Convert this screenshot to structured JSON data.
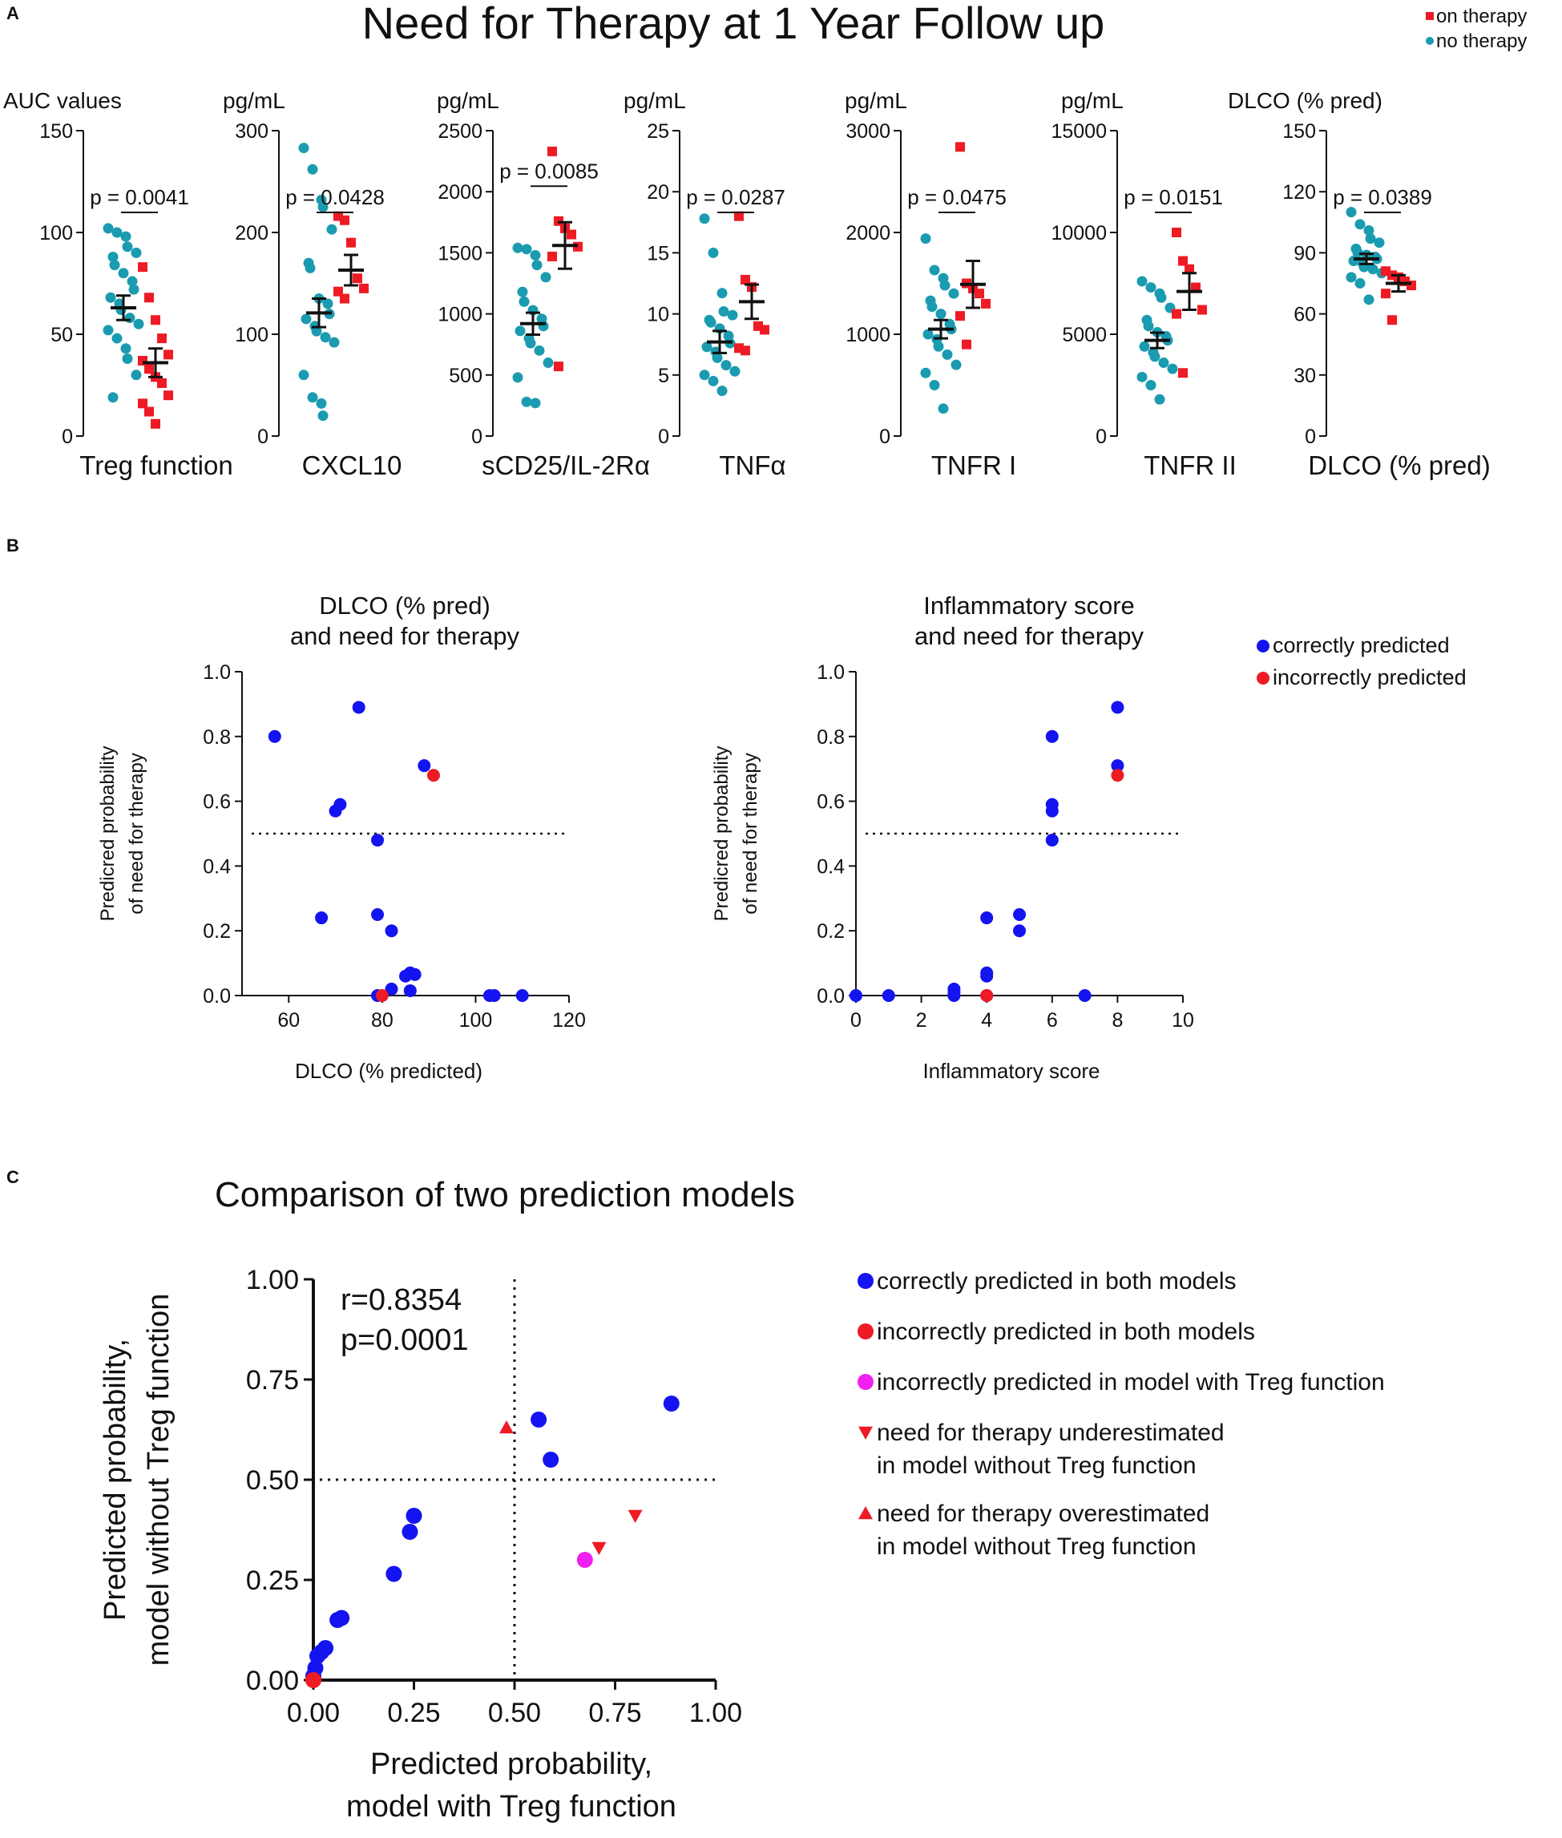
{
  "colors": {
    "teal": "#1a9bb0",
    "red": "#ee1b24",
    "blue": "#1414f0",
    "red_point": "#ee1b24",
    "magenta": "#f020f0",
    "axis": "#111111"
  },
  "panel_a": {
    "label": "A",
    "title": "Need for Therapy at 1 Year Follow up",
    "legend": [
      {
        "label": "on therapy",
        "color": "#ee1b24",
        "shape": "square"
      },
      {
        "label": "no therapy",
        "color": "#1a9bb0",
        "shape": "circle"
      }
    ]
  },
  "panel_b": {
    "label": "B"
  },
  "panel_c": {
    "label": "C",
    "title": "Comparison of two prediction models"
  },
  "chart_data": [
    {
      "type": "scatter",
      "subtype": "dot-plot-mean-sem",
      "unit_label": "AUC values",
      "xlabel": "Treg function",
      "ylim": [
        0,
        150
      ],
      "yticks": [
        0,
        50,
        100,
        150
      ],
      "p_value": "p = 0.0041",
      "groups": [
        {
          "name": "no therapy",
          "color": "#1a9bb0",
          "shape": "circle",
          "mean": 63,
          "sem": 6,
          "values": [
            102,
            100,
            98,
            93,
            90,
            88,
            84,
            80,
            76,
            72,
            68,
            65,
            62,
            58,
            55,
            52,
            48,
            43,
            38,
            30,
            19
          ]
        },
        {
          "name": "on therapy",
          "color": "#ee1b24",
          "shape": "square",
          "mean": 36,
          "sem": 7,
          "values": [
            83,
            68,
            57,
            48,
            40,
            37,
            33,
            29,
            26,
            20,
            16,
            12,
            6
          ]
        }
      ]
    },
    {
      "type": "scatter",
      "subtype": "dot-plot-mean-sem",
      "unit_label": "pg/mL",
      "xlabel": "CXCL10",
      "ylim": [
        0,
        300
      ],
      "yticks": [
        0,
        100,
        200,
        300
      ],
      "p_value": "p = 0.0428",
      "groups": [
        {
          "name": "no therapy",
          "color": "#1a9bb0",
          "shape": "circle",
          "mean": 121,
          "sem": 14,
          "values": [
            283,
            262,
            232,
            225,
            203,
            170,
            165,
            135,
            130,
            120,
            115,
            108,
            103,
            97,
            92,
            60,
            38,
            32,
            20
          ]
        },
        {
          "name": "on therapy",
          "color": "#ee1b24",
          "shape": "square",
          "mean": 163,
          "sem": 15,
          "values": [
            216,
            212,
            190,
            155,
            145,
            142,
            135
          ]
        }
      ]
    },
    {
      "type": "scatter",
      "subtype": "dot-plot-mean-sem",
      "unit_label": "pg/mL",
      "xlabel": "sCD25/IL-2Rα",
      "ylim": [
        0,
        2500
      ],
      "yticks": [
        0,
        500,
        1000,
        1500,
        2000,
        2500
      ],
      "p_value": "p = 0.0085",
      "groups": [
        {
          "name": "no therapy",
          "color": "#1a9bb0",
          "shape": "circle",
          "mean": 920,
          "sem": 90,
          "values": [
            1540,
            1530,
            1480,
            1400,
            1300,
            1180,
            1100,
            1030,
            960,
            900,
            860,
            800,
            760,
            700,
            600,
            480,
            280,
            270
          ]
        },
        {
          "name": "on therapy",
          "color": "#ee1b24",
          "shape": "square",
          "mean": 1560,
          "sem": 190,
          "values": [
            2330,
            1760,
            1700,
            1650,
            1550,
            1470,
            570
          ]
        }
      ]
    },
    {
      "type": "scatter",
      "subtype": "dot-plot-mean-sem",
      "unit_label": "pg/mL",
      "xlabel": "TNFα",
      "ylim": [
        0,
        25
      ],
      "yticks": [
        0,
        5,
        10,
        15,
        20,
        25
      ],
      "p_value": "p = 0.0287",
      "groups": [
        {
          "name": "no therapy",
          "color": "#1a9bb0",
          "shape": "circle",
          "mean": 7.7,
          "sem": 0.9,
          "values": [
            17.8,
            15.0,
            11.7,
            10.2,
            9.9,
            9.5,
            9.3,
            8.8,
            8.2,
            7.6,
            7.3,
            6.9,
            6.4,
            5.8,
            5.3,
            5.0,
            4.5,
            3.7
          ]
        },
        {
          "name": "on therapy",
          "color": "#ee1b24",
          "shape": "square",
          "mean": 11.0,
          "sem": 1.4,
          "values": [
            18.0,
            12.8,
            12.2,
            9.0,
            8.7,
            7.2,
            7.0
          ]
        }
      ]
    },
    {
      "type": "scatter",
      "subtype": "dot-plot-mean-sem",
      "unit_label": "pg/mL",
      "xlabel": "TNFR I",
      "ylim": [
        0,
        3000
      ],
      "yticks": [
        0,
        1000,
        2000,
        3000
      ],
      "p_value": "p = 0.0475",
      "groups": [
        {
          "name": "no therapy",
          "color": "#1a9bb0",
          "shape": "circle",
          "mean": 1050,
          "sem": 90,
          "values": [
            1940,
            1630,
            1550,
            1480,
            1400,
            1330,
            1270,
            1200,
            1100,
            1050,
            1000,
            950,
            880,
            800,
            700,
            620,
            500,
            270
          ]
        },
        {
          "name": "on therapy",
          "color": "#ee1b24",
          "shape": "square",
          "mean": 1490,
          "sem": 230,
          "values": [
            2840,
            1500,
            1450,
            1400,
            1300,
            1180,
            900
          ]
        }
      ]
    },
    {
      "type": "scatter",
      "subtype": "dot-plot-mean-sem",
      "unit_label": "pg/mL",
      "xlabel": "TNFR II",
      "ylim": [
        0,
        15000
      ],
      "yticks": [
        0,
        5000,
        10000,
        15000
      ],
      "p_value": "p = 0.0151",
      "groups": [
        {
          "name": "no therapy",
          "color": "#1a9bb0",
          "shape": "circle",
          "mean": 4700,
          "sem": 380,
          "values": [
            7600,
            7300,
            7000,
            6800,
            6300,
            5700,
            5400,
            5100,
            4900,
            4700,
            4400,
            4100,
            3900,
            3600,
            3300,
            2900,
            2500,
            1800
          ]
        },
        {
          "name": "on therapy",
          "color": "#ee1b24",
          "shape": "square",
          "mean": 7100,
          "sem": 900,
          "values": [
            10000,
            8600,
            8200,
            7300,
            6200,
            6000,
            3100
          ]
        }
      ]
    },
    {
      "type": "scatter",
      "subtype": "dot-plot-mean-sem",
      "unit_label": "DLCO (% pred)",
      "xlabel": "DLCO (% pred)",
      "ylim": [
        0,
        150
      ],
      "yticks": [
        0,
        30,
        60,
        90,
        120,
        150
      ],
      "p_value": "p = 0.0389",
      "groups": [
        {
          "name": "no therapy",
          "color": "#1a9bb0",
          "shape": "circle",
          "mean": 87,
          "sem": 2.5,
          "values": [
            110,
            104,
            101,
            97,
            95,
            92,
            90,
            89,
            88,
            87,
            86,
            85,
            83,
            82,
            80,
            78,
            75,
            67
          ]
        },
        {
          "name": "on therapy",
          "color": "#ee1b24",
          "shape": "square",
          "mean": 75,
          "sem": 4,
          "values": [
            81,
            79,
            78,
            76,
            74,
            70,
            57
          ]
        }
      ]
    },
    {
      "type": "scatter",
      "title": "DLCO (% pred)\nand need for therapy",
      "title_lines": [
        "DLCO (% pred)",
        "and need for therapy"
      ],
      "xlabel": "DLCO (% predicted)",
      "ylabel_lines": [
        "Predicred probability",
        "of need for therapy"
      ],
      "xlim": [
        50,
        120
      ],
      "xticks": [
        60,
        80,
        100,
        120
      ],
      "ylim": [
        0,
        1
      ],
      "yticks": [
        0.0,
        0.2,
        0.4,
        0.6,
        0.8,
        1.0
      ],
      "threshold": 0.5,
      "series": [
        {
          "name": "correctly predicted",
          "color": "#1414f0",
          "points": [
            [
              57,
              0.8
            ],
            [
              75,
              0.89
            ],
            [
              71,
              0.59
            ],
            [
              70,
              0.57
            ],
            [
              89,
              0.71
            ],
            [
              79,
              0.48
            ],
            [
              67,
              0.24
            ],
            [
              79,
              0.25
            ],
            [
              82,
              0.2
            ],
            [
              86,
              0.07
            ],
            [
              85,
              0.06
            ],
            [
              87,
              0.065
            ],
            [
              86,
              0.015
            ],
            [
              82,
              0.02
            ],
            [
              79,
              0.0
            ],
            [
              103,
              0.0
            ],
            [
              104,
              0.0
            ],
            [
              110,
              0.0
            ]
          ]
        },
        {
          "name": "incorrectly predicted",
          "color": "#ee1b24",
          "points": [
            [
              91,
              0.68
            ],
            [
              80,
              0.0
            ]
          ]
        }
      ]
    },
    {
      "type": "scatter",
      "title": "Inflammatory score\nand need for therapy",
      "title_lines": [
        "Inflammatory score",
        "and need for therapy"
      ],
      "xlabel": "Inflammatory score",
      "ylabel_lines": [
        "Predicred probability",
        "of need for therapy"
      ],
      "xlim": [
        0,
        10
      ],
      "xticks": [
        0,
        2,
        4,
        6,
        8,
        10
      ],
      "ylim": [
        0,
        1
      ],
      "yticks": [
        0.0,
        0.2,
        0.4,
        0.6,
        0.8,
        1.0
      ],
      "threshold": 0.5,
      "legend": [
        {
          "label": "correctly predicted",
          "color": "#1414f0"
        },
        {
          "label": "incorrectly predicted",
          "color": "#ee1b24"
        }
      ],
      "series": [
        {
          "name": "correctly predicted",
          "color": "#1414f0",
          "points": [
            [
              8,
              0.89
            ],
            [
              6,
              0.8
            ],
            [
              8,
              0.71
            ],
            [
              6,
              0.59
            ],
            [
              6,
              0.57
            ],
            [
              6,
              0.48
            ],
            [
              4,
              0.24
            ],
            [
              5,
              0.25
            ],
            [
              5,
              0.2
            ],
            [
              4,
              0.07
            ],
            [
              4,
              0.06
            ],
            [
              3,
              0.02
            ],
            [
              3,
              0.01
            ],
            [
              0,
              0.0
            ],
            [
              1,
              0.0
            ],
            [
              3,
              0.0
            ],
            [
              4,
              0.0
            ],
            [
              7,
              0.0
            ]
          ]
        },
        {
          "name": "incorrectly predicted",
          "color": "#ee1b24",
          "points": [
            [
              8,
              0.68
            ],
            [
              4,
              0.0
            ]
          ]
        }
      ]
    },
    {
      "type": "scatter",
      "title": "Comparison of two prediction models",
      "xlabel_lines": [
        "Predicted probability,",
        "model with Treg function"
      ],
      "ylabel_lines": [
        "Predicted probability,",
        "model without Treg function"
      ],
      "xlim": [
        0,
        1
      ],
      "ylim": [
        0,
        1
      ],
      "xticks": [
        "0.00",
        "0.25",
        "0.50",
        "0.75",
        "1.00"
      ],
      "yticks": [
        "0.00",
        "0.25",
        "0.50",
        "0.75",
        "1.00"
      ],
      "threshold_x": 0.5,
      "threshold_y": 0.5,
      "annotation_lines": [
        "r=0.8354",
        "p=0.0001"
      ],
      "legend": [
        {
          "label_lines": [
            "correctly predicted in both models"
          ],
          "color": "#1414f0",
          "shape": "circle"
        },
        {
          "label_lines": [
            "incorrectly predicted in both models"
          ],
          "color": "#ee1b24",
          "shape": "circle"
        },
        {
          "label_lines": [
            "incorrectly predicted in model with Treg function"
          ],
          "color": "#f020f0",
          "shape": "circle"
        },
        {
          "label_lines": [
            "need for therapy underestimated",
            "in model without Treg function"
          ],
          "color": "#ee1b24",
          "shape": "triangle-down"
        },
        {
          "label_lines": [
            "need for therapy overestimated",
            "in model without Treg function"
          ],
          "color": "#ee1b24",
          "shape": "triangle-up"
        }
      ],
      "series": [
        {
          "name": "correctly predicted in both models",
          "color": "#1414f0",
          "shape": "circle",
          "points": [
            [
              0.89,
              0.69
            ],
            [
              0.56,
              0.65
            ],
            [
              0.59,
              0.55
            ],
            [
              0.25,
              0.41
            ],
            [
              0.24,
              0.37
            ],
            [
              0.2,
              0.265
            ],
            [
              0.07,
              0.155
            ],
            [
              0.06,
              0.15
            ],
            [
              0.03,
              0.08
            ],
            [
              0.02,
              0.07
            ],
            [
              0.01,
              0.06
            ],
            [
              0.005,
              0.03
            ],
            [
              0.0,
              0.01
            ]
          ]
        },
        {
          "name": "incorrectly predicted in both models",
          "color": "#ee1b24",
          "shape": "circle",
          "points": [
            [
              0.0,
              0.0
            ]
          ]
        },
        {
          "name": "incorrectly predicted in model with Treg function",
          "color": "#f020f0",
          "shape": "circle",
          "points": [
            [
              0.675,
              0.3
            ]
          ]
        },
        {
          "name": "need for therapy underestimated",
          "color": "#ee1b24",
          "shape": "triangle-down",
          "points": [
            [
              0.8,
              0.41
            ],
            [
              0.71,
              0.33
            ]
          ]
        },
        {
          "name": "need for therapy overestimated",
          "color": "#ee1b24",
          "shape": "triangle-up",
          "points": [
            [
              0.48,
              0.63
            ]
          ]
        }
      ]
    }
  ]
}
